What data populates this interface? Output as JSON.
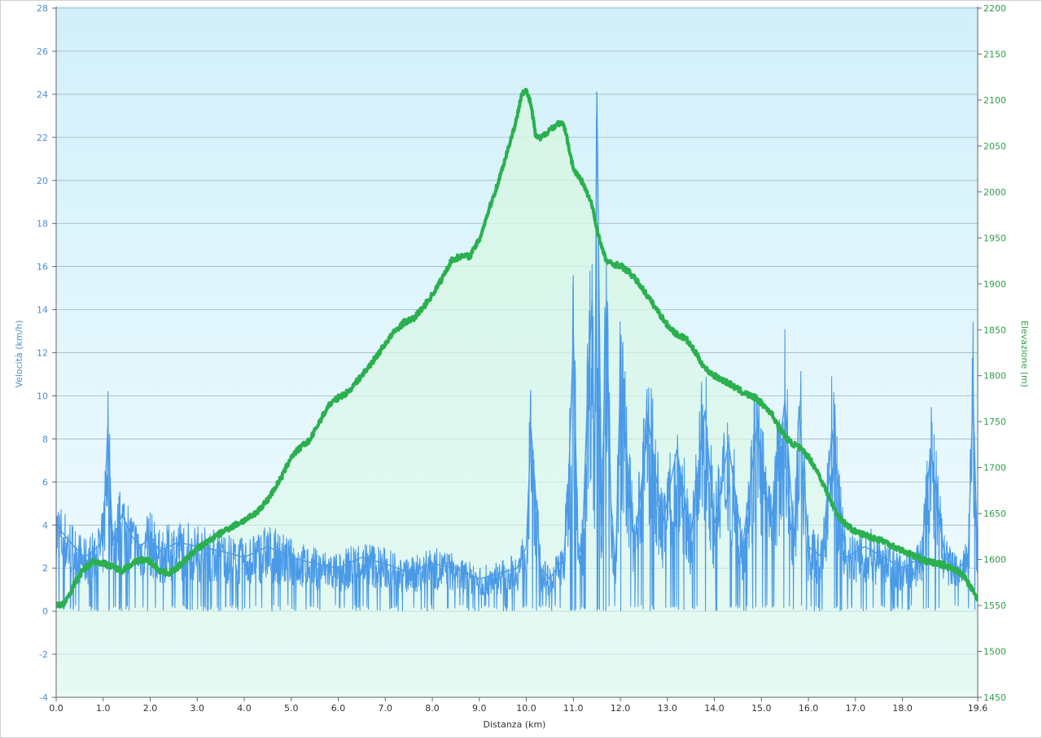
{
  "chart_data": {
    "type": "line",
    "title": "",
    "xlabel": "Distanza  (km)",
    "ylabel_left": "Velocità (km/h)",
    "ylabel_right": "Elevazione (m)",
    "xlim": [
      0,
      19.6
    ],
    "ylim_left": [
      -4,
      28
    ],
    "ylim_right": [
      1450,
      2200
    ],
    "x_ticks": [
      "0.0",
      "1.0",
      "2.0",
      "3.0",
      "4.0",
      "5.0",
      "6.0",
      "7.0",
      "8.0",
      "9.0",
      "10.0",
      "11.0",
      "12.0",
      "13.0",
      "14.0",
      "15.0",
      "16.0",
      "17.0",
      "18.0",
      "19.6"
    ],
    "x_tick_values": [
      0,
      1,
      2,
      3,
      4,
      5,
      6,
      7,
      8,
      9,
      10,
      11,
      12,
      13,
      14,
      15,
      16,
      17,
      18,
      19.6
    ],
    "y_left_ticks": [
      "-4",
      "-2",
      "0",
      "2",
      "4",
      "6",
      "8",
      "10",
      "12",
      "14",
      "16",
      "18",
      "20",
      "22",
      "24",
      "26",
      "28"
    ],
    "y_right_ticks": [
      "1450",
      "1500",
      "1550",
      "1600",
      "1650",
      "1700",
      "1750",
      "1800",
      "1850",
      "1900",
      "1950",
      "2000",
      "2050",
      "2100",
      "2150",
      "2200"
    ],
    "grid": true,
    "colors": {
      "speed": "#4a9ae8",
      "elevation": "#2ab04e",
      "elevation_fill": "#c6f0d6",
      "bg_top": "#d2f0fa",
      "bg_bottom": "#f2fcff",
      "grid": "#9aaab4"
    },
    "series": [
      {
        "axis": "right",
        "x": [
          0,
          0.2,
          0.4,
          0.6,
          0.8,
          1.0,
          1.2,
          1.4,
          1.6,
          1.8,
          2.0,
          2.2,
          2.4,
          2.6,
          2.8,
          3.0,
          3.3,
          3.6,
          3.9,
          4.2,
          4.5,
          4.8,
          5.0,
          5.2,
          5.4,
          5.6,
          5.8,
          6.0,
          6.2,
          6.5,
          6.8,
          7.0,
          7.2,
          7.4,
          7.6,
          7.8,
          8.0,
          8.2,
          8.4,
          8.6,
          8.8,
          9.0,
          9.2,
          9.4,
          9.6,
          9.8,
          9.9,
          10.0,
          10.1,
          10.2,
          10.3,
          10.5,
          10.7,
          10.8,
          10.9,
          11.0,
          11.2,
          11.4,
          11.5,
          11.6,
          11.7,
          11.8,
          12.0,
          12.2,
          12.4,
          12.6,
          12.8,
          13.0,
          13.2,
          13.4,
          13.6,
          13.8,
          14.0,
          14.3,
          14.6,
          14.9,
          15.2,
          15.4,
          15.6,
          15.8,
          16.0,
          16.2,
          16.4,
          16.6,
          16.8,
          17.0,
          17.3,
          17.6,
          17.9,
          18.2,
          18.5,
          18.8,
          19.1,
          19.3,
          19.45,
          19.6
        ],
        "values": [
          1550,
          1553,
          1575,
          1590,
          1598,
          1596,
          1592,
          1588,
          1595,
          1600,
          1598,
          1588,
          1585,
          1592,
          1602,
          1612,
          1622,
          1632,
          1640,
          1648,
          1665,
          1690,
          1712,
          1722,
          1730,
          1750,
          1768,
          1776,
          1782,
          1800,
          1820,
          1835,
          1848,
          1858,
          1862,
          1874,
          1888,
          1905,
          1925,
          1930,
          1930,
          1948,
          1980,
          2010,
          2045,
          2080,
          2108,
          2110,
          2095,
          2060,
          2058,
          2068,
          2075,
          2072,
          2050,
          2025,
          2010,
          1985,
          1960,
          1940,
          1925,
          1922,
          1920,
          1912,
          1900,
          1885,
          1870,
          1855,
          1845,
          1840,
          1825,
          1808,
          1800,
          1792,
          1782,
          1775,
          1760,
          1742,
          1728,
          1722,
          1712,
          1695,
          1672,
          1650,
          1638,
          1630,
          1625,
          1620,
          1612,
          1605,
          1598,
          1595,
          1590,
          1582,
          1570,
          1556
        ]
      },
      {
        "axis": "left",
        "x": [
          0,
          0.3,
          0.6,
          0.9,
          1.0,
          1.1,
          1.2,
          1.4,
          1.6,
          1.8,
          2.0,
          2.2,
          2.6,
          3.0,
          3.5,
          4.0,
          4.5,
          5.0,
          5.5,
          6.0,
          6.5,
          7.0,
          7.5,
          8.0,
          8.5,
          9.0,
          9.5,
          9.8,
          10.0,
          10.1,
          10.3,
          10.5,
          10.8,
          10.9,
          11.0,
          11.1,
          11.2,
          11.3,
          11.4,
          11.45,
          11.5,
          11.6,
          11.7,
          11.8,
          11.9,
          12.0,
          12.3,
          12.6,
          12.9,
          13.2,
          13.5,
          13.8,
          14.0,
          14.3,
          14.6,
          14.9,
          15.2,
          15.5,
          15.7,
          15.8,
          16.0,
          16.3,
          16.5,
          16.8,
          17.2,
          17.6,
          18.0,
          18.4,
          18.6,
          18.9,
          19.2,
          19.4,
          19.5,
          19.6
        ],
        "values": [
          4.0,
          3.2,
          2.5,
          3.0,
          3.5,
          8.6,
          3.2,
          4.5,
          3.5,
          3.0,
          3.5,
          2.8,
          3.2,
          3.0,
          2.8,
          2.5,
          3.0,
          2.5,
          2.2,
          2.0,
          2.5,
          2.2,
          1.8,
          2.2,
          2.0,
          1.5,
          1.8,
          2.0,
          3.0,
          8.5,
          2.0,
          1.5,
          2.5,
          6.0,
          12.9,
          2.5,
          3.5,
          10.0,
          14.5,
          5.0,
          24.1,
          4.0,
          14.4,
          5.0,
          2.0,
          11.0,
          3.0,
          8.8,
          4.0,
          7.5,
          3.5,
          9.3,
          4.0,
          7.8,
          3.0,
          8.5,
          4.0,
          9.8,
          3.0,
          9.5,
          3.0,
          2.5,
          8.4,
          2.5,
          3.0,
          2.5,
          2.0,
          2.5,
          7.5,
          2.5,
          2.0,
          2.5,
          10.2,
          2.0
        ]
      }
    ]
  }
}
